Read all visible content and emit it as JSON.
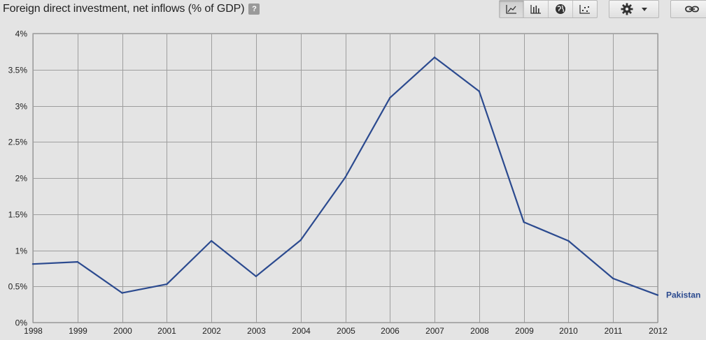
{
  "header": {
    "title": "Foreign direct investment, net inflows (% of GDP)",
    "help_label": "?"
  },
  "toolbar": {
    "views": [
      {
        "icon": "line-chart-icon",
        "active": true
      },
      {
        "icon": "bar-chart-icon",
        "active": false
      },
      {
        "icon": "globe-icon",
        "active": false
      },
      {
        "icon": "scatter-chart-icon",
        "active": false
      }
    ],
    "settings_icon": "gear-icon",
    "dropdown_icon": "caret-down-icon",
    "link_icon": "link-icon"
  },
  "chart_data": {
    "type": "line",
    "x": [
      1998,
      1999,
      2000,
      2001,
      2002,
      2003,
      2004,
      2005,
      2006,
      2007,
      2008,
      2009,
      2010,
      2011,
      2012
    ],
    "series": [
      {
        "name": "Pakistan",
        "color": "#2b4a8f",
        "values": [
          0.81,
          0.84,
          0.41,
          0.53,
          1.13,
          0.64,
          1.14,
          2.01,
          3.11,
          3.67,
          3.2,
          1.39,
          1.13,
          0.61,
          0.38
        ]
      }
    ],
    "ylim": [
      0,
      4
    ],
    "yticks": [
      0,
      0.5,
      1,
      1.5,
      2,
      2.5,
      3,
      3.5,
      4
    ],
    "ytick_labels": [
      "0%",
      "0.5%",
      "1%",
      "1.5%",
      "2%",
      "2.5%",
      "3%",
      "3.5%",
      "4%"
    ],
    "xtick_labels": [
      "1998",
      "1999",
      "2000",
      "2001",
      "2002",
      "2003",
      "2004",
      "2005",
      "2006",
      "2007",
      "2008",
      "2009",
      "2010",
      "2011",
      "2012"
    ],
    "grid": true,
    "legend": "inline-end-label"
  }
}
